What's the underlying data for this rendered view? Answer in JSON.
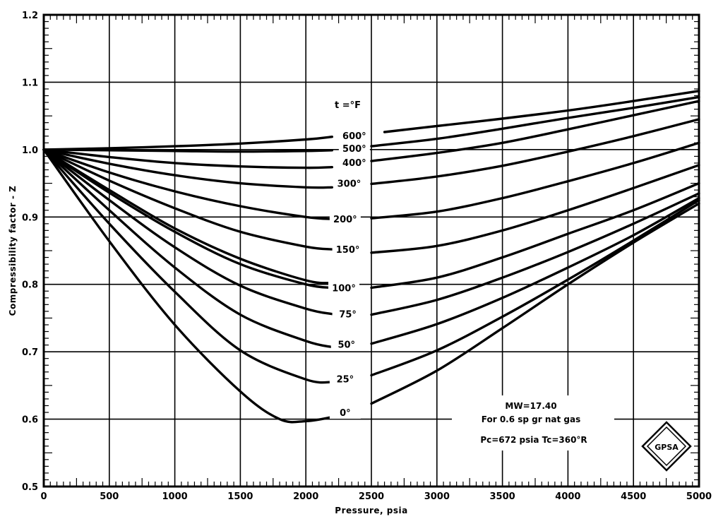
{
  "chart_data": {
    "type": "line",
    "xlabel": "Pressure, psia",
    "ylabel": "Compressibility factor - Z",
    "xlim": [
      0,
      5000
    ],
    "ylim": [
      0.5,
      1.2
    ],
    "x_ticks": [
      "0",
      "500",
      "1000",
      "1500",
      "2000",
      "2500",
      "3000",
      "3500",
      "4000",
      "4500",
      "5000"
    ],
    "y_ticks": [
      "0.5",
      "0.6",
      "0.7",
      "0.8",
      "0.9",
      "1.0",
      "1.1",
      "1.2"
    ],
    "grid": true,
    "legend_title": "t =°F",
    "series": [
      {
        "name": "600°",
        "left": [
          [
            0,
            1.0
          ],
          [
            500,
            1.002
          ],
          [
            1000,
            1.005
          ],
          [
            1500,
            1.009
          ],
          [
            2000,
            1.015
          ],
          [
            2200,
            1.019
          ]
        ],
        "right": [
          [
            2600,
            1.026
          ],
          [
            3000,
            1.035
          ],
          [
            3500,
            1.046
          ],
          [
            4000,
            1.058
          ],
          [
            4500,
            1.072
          ],
          [
            5000,
            1.087
          ]
        ]
      },
      {
        "name": "500°",
        "left": [
          [
            0,
            1.0
          ],
          [
            500,
            0.999
          ],
          [
            1000,
            0.998
          ],
          [
            1500,
            0.997
          ],
          [
            2000,
            0.998
          ],
          [
            2200,
            0.999
          ]
        ],
        "right": [
          [
            2500,
            1.005
          ],
          [
            3000,
            1.016
          ],
          [
            3500,
            1.031
          ],
          [
            4000,
            1.047
          ],
          [
            4500,
            1.062
          ],
          [
            5000,
            1.078
          ]
        ]
      },
      {
        "name": "400°",
        "left": [
          [
            0,
            1.0
          ],
          [
            500,
            0.989
          ],
          [
            1000,
            0.98
          ],
          [
            1500,
            0.975
          ],
          [
            2000,
            0.973
          ],
          [
            2200,
            0.974
          ]
        ],
        "right": [
          [
            2500,
            0.983
          ],
          [
            3000,
            0.995
          ],
          [
            3500,
            1.01
          ],
          [
            4000,
            1.03
          ],
          [
            4500,
            1.051
          ],
          [
            5000,
            1.072
          ]
        ]
      },
      {
        "name": "300°",
        "left": [
          [
            0,
            1.0
          ],
          [
            500,
            0.979
          ],
          [
            1000,
            0.962
          ],
          [
            1500,
            0.95
          ],
          [
            2000,
            0.944
          ],
          [
            2200,
            0.944
          ]
        ],
        "right": [
          [
            2500,
            0.949
          ],
          [
            3000,
            0.96
          ],
          [
            3500,
            0.976
          ],
          [
            4000,
            0.997
          ],
          [
            4500,
            1.02
          ],
          [
            5000,
            1.045
          ]
        ]
      },
      {
        "name": "200°",
        "left": [
          [
            0,
            1.0
          ],
          [
            500,
            0.966
          ],
          [
            1000,
            0.938
          ],
          [
            1500,
            0.916
          ],
          [
            2000,
            0.9
          ],
          [
            2200,
            0.897
          ]
        ],
        "right": [
          [
            2500,
            0.898
          ],
          [
            3000,
            0.908
          ],
          [
            3500,
            0.928
          ],
          [
            4000,
            0.953
          ],
          [
            4500,
            0.98
          ],
          [
            5000,
            1.01
          ]
        ]
      },
      {
        "name": "150°",
        "left": [
          [
            0,
            1.0
          ],
          [
            500,
            0.954
          ],
          [
            1000,
            0.913
          ],
          [
            1500,
            0.878
          ],
          [
            2000,
            0.856
          ],
          [
            2200,
            0.852
          ]
        ],
        "right": [
          [
            2500,
            0.847
          ],
          [
            3000,
            0.857
          ],
          [
            3500,
            0.88
          ],
          [
            4000,
            0.91
          ],
          [
            4500,
            0.943
          ],
          [
            5000,
            0.977
          ]
        ]
      },
      {
        "name": "100°",
        "left": [
          [
            0,
            1.0
          ],
          [
            500,
            0.94
          ],
          [
            1000,
            0.883
          ],
          [
            1500,
            0.838
          ],
          [
            2000,
            0.806
          ],
          [
            2200,
            0.802
          ]
        ],
        "right": [
          [
            2500,
            0.795
          ],
          [
            3000,
            0.81
          ],
          [
            3500,
            0.84
          ],
          [
            4000,
            0.875
          ],
          [
            4500,
            0.91
          ],
          [
            5000,
            0.95
          ]
        ]
      },
      {
        "name": "100° (2)",
        "left": [
          [
            0,
            1.0
          ],
          [
            500,
            0.936
          ],
          [
            1000,
            0.878
          ],
          [
            1500,
            0.83
          ],
          [
            2000,
            0.8
          ],
          [
            2200,
            0.795
          ]
        ],
        "right": []
      },
      {
        "name": "75°",
        "left": [
          [
            0,
            1.0
          ],
          [
            500,
            0.925
          ],
          [
            1000,
            0.855
          ],
          [
            1500,
            0.798
          ],
          [
            2000,
            0.764
          ],
          [
            2200,
            0.756
          ]
        ],
        "right": [
          [
            2500,
            0.755
          ],
          [
            3000,
            0.777
          ],
          [
            3500,
            0.81
          ],
          [
            4000,
            0.848
          ],
          [
            4500,
            0.89
          ],
          [
            5000,
            0.935
          ]
        ]
      },
      {
        "name": "50°",
        "left": [
          [
            0,
            1.0
          ],
          [
            500,
            0.91
          ],
          [
            1000,
            0.825
          ],
          [
            1500,
            0.755
          ],
          [
            2000,
            0.716
          ],
          [
            2200,
            0.707
          ]
        ],
        "right": [
          [
            2500,
            0.712
          ],
          [
            3000,
            0.741
          ],
          [
            3500,
            0.78
          ],
          [
            4000,
            0.825
          ],
          [
            4500,
            0.873
          ],
          [
            5000,
            0.928
          ]
        ]
      },
      {
        "name": "25°",
        "left": [
          [
            0,
            1.0
          ],
          [
            500,
            0.89
          ],
          [
            1000,
            0.789
          ],
          [
            1500,
            0.702
          ],
          [
            2000,
            0.659
          ],
          [
            2200,
            0.655
          ]
        ],
        "right": [
          [
            2500,
            0.665
          ],
          [
            3000,
            0.702
          ],
          [
            3500,
            0.752
          ],
          [
            4000,
            0.807
          ],
          [
            4500,
            0.865
          ],
          [
            5000,
            0.925
          ]
        ]
      },
      {
        "name": "0°",
        "left": [
          [
            0,
            1.0
          ],
          [
            500,
            0.864
          ],
          [
            1000,
            0.74
          ],
          [
            1500,
            0.641
          ],
          [
            1800,
            0.6
          ],
          [
            2000,
            0.597
          ],
          [
            2200,
            0.603
          ]
        ],
        "right": [
          [
            2500,
            0.623
          ],
          [
            3000,
            0.672
          ],
          [
            3500,
            0.735
          ],
          [
            4000,
            0.8
          ],
          [
            4500,
            0.862
          ],
          [
            5000,
            0.92
          ]
        ]
      }
    ],
    "curve_labels": [
      {
        "text": "600°",
        "p": 2370,
        "z": 1.021
      },
      {
        "text": "500°",
        "p": 2370,
        "z": 1.002
      },
      {
        "text": "400°",
        "p": 2370,
        "z": 0.981
      },
      {
        "text": "300°",
        "p": 2330,
        "z": 0.95
      },
      {
        "text": "200°",
        "p": 2300,
        "z": 0.897
      },
      {
        "text": "150°",
        "p": 2320,
        "z": 0.852
      },
      {
        "text": "100°",
        "p": 2290,
        "z": 0.795
      },
      {
        "text": "75°",
        "p": 2320,
        "z": 0.756
      },
      {
        "text": "50°",
        "p": 2310,
        "z": 0.711
      },
      {
        "text": "25°",
        "p": 2300,
        "z": 0.66
      },
      {
        "text": "0°",
        "p": 2300,
        "z": 0.61
      }
    ],
    "notes": [
      "MW=17.40",
      "For 0.6 sp gr nat gas",
      "Pc=672 psia  Tc=360°R"
    ],
    "logo_text": "GPSA"
  }
}
